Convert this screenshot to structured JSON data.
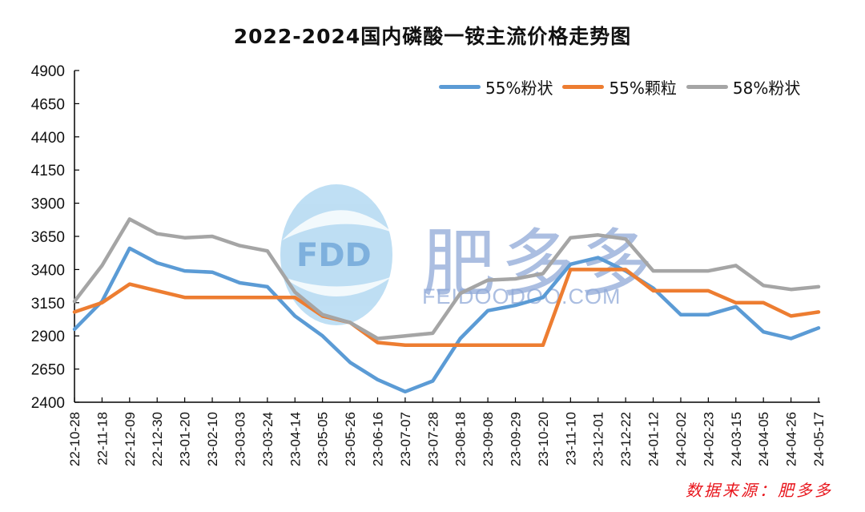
{
  "chart_data": {
    "type": "line",
    "title": "2022-2024国内磷酸一铵主流价格走势图",
    "xlabel": "",
    "ylabel": "",
    "ylim": [
      2400,
      4900
    ],
    "yticks": [
      2400,
      2650,
      2900,
      3150,
      3400,
      3650,
      3900,
      4150,
      4400,
      4650,
      4900
    ],
    "grid": false,
    "legend_position": "top-right",
    "categories": [
      "22-10-28",
      "22-11-18",
      "22-12-09",
      "22-12-30",
      "23-01-20",
      "23-02-10",
      "23-03-03",
      "23-03-24",
      "23-04-14",
      "23-05-05",
      "23-05-26",
      "23-06-16",
      "23-07-07",
      "23-07-28",
      "23-08-18",
      "23-09-08",
      "23-09-29",
      "23-10-20",
      "23-11-10",
      "23-12-01",
      "23-12-22",
      "24-01-12",
      "24-02-02",
      "24-02-23",
      "24-03-15",
      "24-04-05",
      "24-04-26",
      "24-05-17"
    ],
    "series": [
      {
        "name": "55%粉状",
        "color": "#5b9bd5",
        "values": [
          2950,
          3160,
          3560,
          3450,
          3390,
          3380,
          3300,
          3270,
          3050,
          2900,
          2700,
          2570,
          2480,
          2560,
          2880,
          3090,
          3130,
          3190,
          3440,
          3490,
          3390,
          3260,
          3060,
          3060,
          3120,
          2930,
          2880,
          2960
        ]
      },
      {
        "name": "55%颗粒",
        "color": "#ed7d31",
        "values": [
          3080,
          3150,
          3290,
          3240,
          3190,
          3190,
          3190,
          3190,
          3190,
          3050,
          3000,
          2850,
          2830,
          2830,
          2830,
          2830,
          2830,
          2830,
          3400,
          3400,
          3400,
          3240,
          3240,
          3240,
          3150,
          3150,
          3050,
          3080
        ]
      },
      {
        "name": "58%粉状",
        "color": "#a5a5a5",
        "values": [
          3160,
          3430,
          3780,
          3670,
          3640,
          3650,
          3580,
          3540,
          3230,
          3060,
          3000,
          2880,
          2900,
          2920,
          3220,
          3320,
          3330,
          3370,
          3640,
          3660,
          3630,
          3390,
          3390,
          3390,
          3430,
          3280,
          3250,
          3270
        ]
      }
    ]
  },
  "legend": {
    "items": [
      {
        "label": "55%粉状",
        "color": "#5b9bd5"
      },
      {
        "label": "55%颗粒",
        "color": "#ed7d31"
      },
      {
        "label": "58%粉状",
        "color": "#a5a5a5"
      }
    ]
  },
  "watermark": {
    "logo_text": "FDD",
    "brand": "肥多多",
    "url": "FEIDOODOO.COM"
  },
  "source_note": "数据来源：肥多多"
}
